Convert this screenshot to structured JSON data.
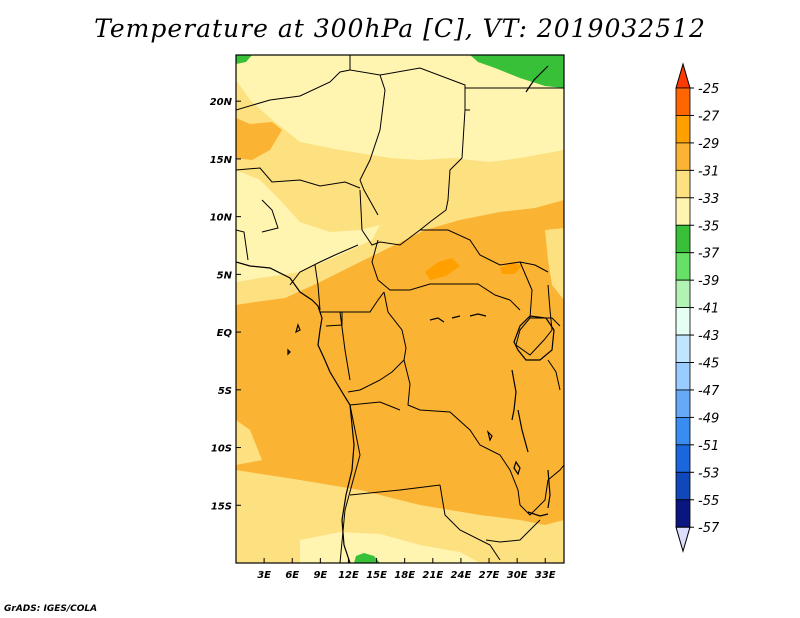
{
  "title": "Temperature at 300hPa [C], VT: 2019032512",
  "credit": "GrADS: IGES/COLA",
  "map": {
    "lon_range": [
      0,
      35
    ],
    "lat_range": [
      -20,
      24
    ],
    "x_ticks": [
      "3E",
      "6E",
      "9E",
      "12E",
      "15E",
      "18E",
      "21E",
      "24E",
      "27E",
      "30E",
      "33E"
    ],
    "x_tick_values": [
      3,
      6,
      9,
      12,
      15,
      18,
      21,
      24,
      27,
      30,
      33
    ],
    "y_ticks": [
      "20N",
      "15N",
      "10N",
      "5N",
      "EQ",
      "5S",
      "10S",
      "15S"
    ],
    "y_tick_values": [
      20,
      15,
      10,
      5,
      0,
      -5,
      -10,
      -15
    ]
  },
  "colorbar": {
    "labels": [
      "-25",
      "-27",
      "-29",
      "-31",
      "-33",
      "-35",
      "-37",
      "-39",
      "-41",
      "-43",
      "-45",
      "-47",
      "-49",
      "-51",
      "-53",
      "-55",
      "-57"
    ],
    "colors": [
      "#ff3a00",
      "#ff6600",
      "#ffa000",
      "#fbb333",
      "#fde080",
      "#fff4b0",
      "#38c038",
      "#66e066",
      "#b2f2b2",
      "#e6fff4",
      "#bfe5ff",
      "#99ccff",
      "#66aaf7",
      "#3a8df0",
      "#1a66dd",
      "#1047bb",
      "#0a1580"
    ],
    "top_arrow_color": "#ff3a00",
    "bottom_arrow_color": "#ddddff"
  },
  "fill_colors": {
    "c29": "#fbb333",
    "c31": "#fde080",
    "c33": "#fff4b0",
    "c27": "#ffa000",
    "c37": "#38c038"
  }
}
